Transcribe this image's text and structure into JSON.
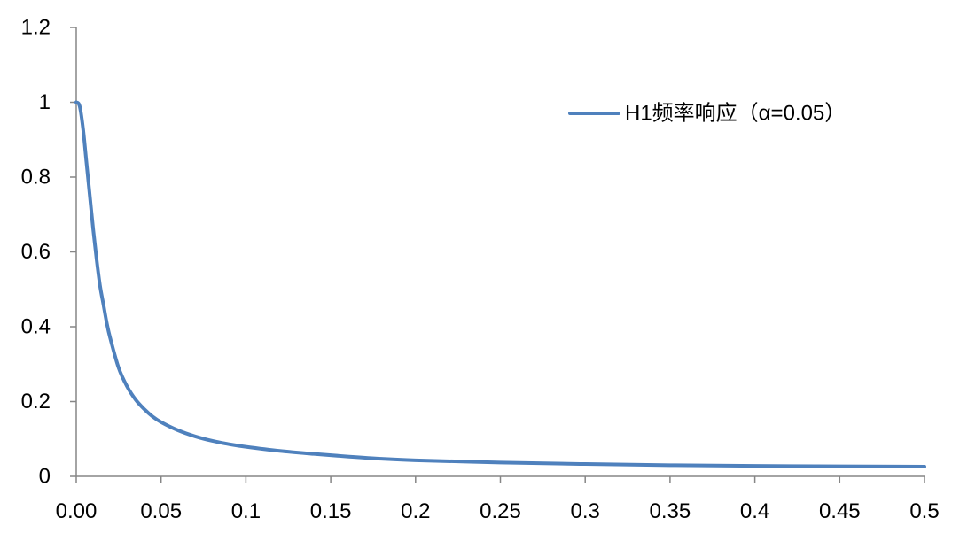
{
  "chart_data": {
    "type": "line",
    "title": "",
    "xlabel": "",
    "ylabel": "",
    "xlim": [
      0,
      0.5
    ],
    "ylim": [
      0,
      1.2
    ],
    "grid": false,
    "legend_position": "top-right",
    "x_ticks": [
      {
        "value": 0,
        "label": "0.00"
      },
      {
        "value": 0.05,
        "label": "0.05"
      },
      {
        "value": 0.1,
        "label": "0.1"
      },
      {
        "value": 0.15,
        "label": "0.15"
      },
      {
        "value": 0.2,
        "label": "0.2"
      },
      {
        "value": 0.25,
        "label": "0.25"
      },
      {
        "value": 0.3,
        "label": "0.3"
      },
      {
        "value": 0.35,
        "label": "0.35"
      },
      {
        "value": 0.4,
        "label": "0.4"
      },
      {
        "value": 0.45,
        "label": "0.45"
      },
      {
        "value": 0.5,
        "label": "0.5"
      }
    ],
    "y_ticks": [
      {
        "value": 0,
        "label": "0"
      },
      {
        "value": 0.2,
        "label": "0.2"
      },
      {
        "value": 0.4,
        "label": "0.4"
      },
      {
        "value": 0.6,
        "label": "0.6"
      },
      {
        "value": 0.8,
        "label": "0.8"
      },
      {
        "value": 1,
        "label": "1"
      },
      {
        "value": 1.2,
        "label": "1.2"
      }
    ],
    "series": [
      {
        "name": "H1频率响应（α=0.05）",
        "color": "#4F81BD",
        "x": [
          0,
          0.002,
          0.004,
          0.006,
          0.008,
          0.01,
          0.012,
          0.014,
          0.016,
          0.018,
          0.02,
          0.025,
          0.03,
          0.035,
          0.04,
          0.045,
          0.05,
          0.06,
          0.07,
          0.08,
          0.09,
          0.1,
          0.12,
          0.14,
          0.16,
          0.18,
          0.2,
          0.25,
          0.3,
          0.35,
          0.4,
          0.45,
          0.5
        ],
        "y": [
          1.0,
          0.99,
          0.93,
          0.84,
          0.75,
          0.66,
          0.58,
          0.51,
          0.46,
          0.41,
          0.37,
          0.29,
          0.24,
          0.205,
          0.18,
          0.16,
          0.145,
          0.123,
          0.107,
          0.095,
          0.086,
          0.079,
          0.068,
          0.06,
          0.053,
          0.047,
          0.043,
          0.037,
          0.033,
          0.03,
          0.028,
          0.027,
          0.026
        ]
      }
    ]
  }
}
